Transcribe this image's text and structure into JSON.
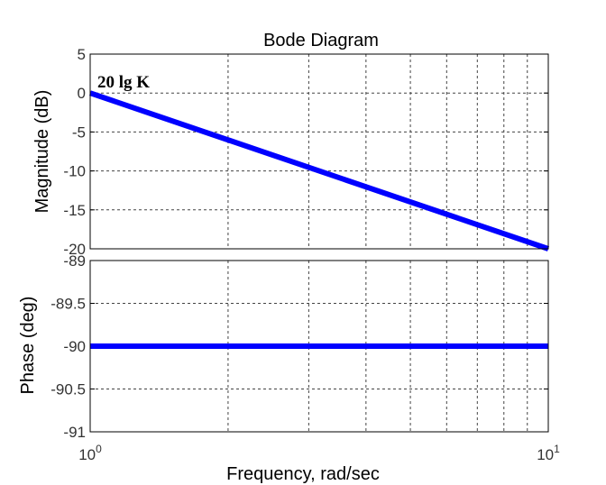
{
  "chart_data": {
    "type": "line",
    "title": "Bode Diagram",
    "xlabel": "Frequency, rad/sec",
    "x_scale": "log",
    "xlim": [
      1,
      10
    ],
    "x_ticks": [
      {
        "base": "10",
        "exp": "0"
      },
      {
        "base": "10",
        "exp": "1"
      }
    ],
    "grid": true,
    "panels": [
      {
        "name": "magnitude",
        "ylabel": "Magnitude (dB)",
        "ylim": [
          -20,
          5
        ],
        "yticks": [
          5,
          0,
          -5,
          -10,
          -15,
          -20
        ],
        "ytick_labels": [
          "5",
          "0",
          "-5",
          "-10",
          "-15",
          "-20"
        ],
        "series": [
          {
            "x": [
              1,
              10
            ],
            "y": [
              0,
              -20
            ],
            "color": "#0000ff"
          }
        ],
        "annotation": {
          "text": "20 lg K",
          "x": 1,
          "y": 0
        }
      },
      {
        "name": "phase",
        "ylabel": "Phase (deg)",
        "ylim": [
          -91,
          -89
        ],
        "yticks": [
          -89,
          -89.5,
          -90,
          -90.5,
          -91
        ],
        "ytick_labels": [
          "-89",
          "-89.5",
          "-90",
          "-90.5",
          "-91"
        ],
        "series": [
          {
            "x": [
              1,
              10
            ],
            "y": [
              -90,
              -90
            ],
            "color": "#0000ff"
          }
        ]
      }
    ]
  }
}
